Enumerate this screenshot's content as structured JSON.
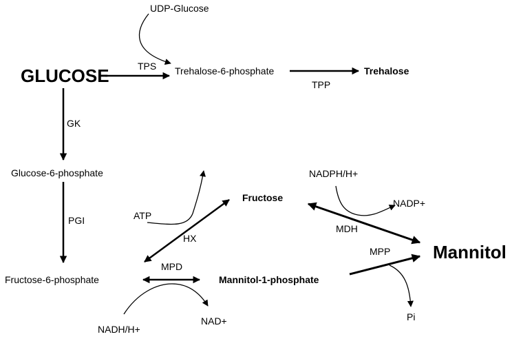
{
  "metabolites": {
    "udp_glucose": "UDP-Glucose",
    "glucose": "GLUCOSE",
    "trehalose_6_phosphate": "Trehalose-6-phosphate",
    "trehalose": "Trehalose",
    "glucose_6_phosphate": "Glucose-6-phosphate",
    "fructose_6_phosphate": "Fructose-6-phosphate",
    "fructose": "Fructose",
    "mannitol_1_phosphate": "Mannitol-1-phosphate",
    "mannitol": "Mannitol"
  },
  "enzymes": {
    "tps": "TPS",
    "tpp": "TPP",
    "gk": "GK",
    "pgi": "PGI",
    "hx": "HX",
    "mpd": "MPD",
    "mdh": "MDH",
    "mpp": "MPP"
  },
  "cofactors": {
    "atp": "ATP",
    "nadph_h": "NADPH/H+",
    "nadp": "NADP+",
    "nadh_h": "NADH/H+",
    "nad": "NAD+",
    "pi": "Pi"
  }
}
